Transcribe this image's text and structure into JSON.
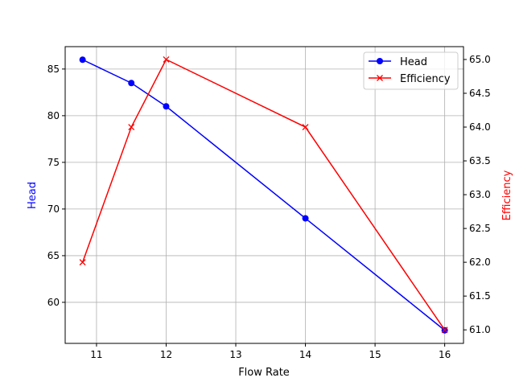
{
  "chart_data": {
    "type": "line",
    "title": "",
    "xlabel": "Flow Rate",
    "ylabel": "Head",
    "y2label": "Efficiency",
    "xlim": [
      10.55,
      16.27
    ],
    "ylim": [
      55.6,
      87.4
    ],
    "y2lim": [
      60.8,
      65.19
    ],
    "xticks": [
      11,
      12,
      13,
      14,
      15,
      16
    ],
    "yticks": [
      60,
      65,
      70,
      75,
      80,
      85
    ],
    "y2ticks": [
      "61.0",
      "61.5",
      "62.0",
      "62.5",
      "63.0",
      "63.5",
      "64.0",
      "64.5",
      "65.0"
    ],
    "grid": true,
    "legend_position": "top-right",
    "x": [
      10.8,
      11.5,
      12,
      14,
      16
    ],
    "series": [
      {
        "name": "Head",
        "axis": "left",
        "color": "#0000ff",
        "marker": "circle",
        "values": [
          86,
          83.5,
          81,
          69,
          57
        ]
      },
      {
        "name": "Efficiency",
        "axis": "right",
        "color": "#ff0000",
        "marker": "x",
        "values": [
          62,
          64,
          65,
          64,
          61
        ]
      }
    ]
  }
}
